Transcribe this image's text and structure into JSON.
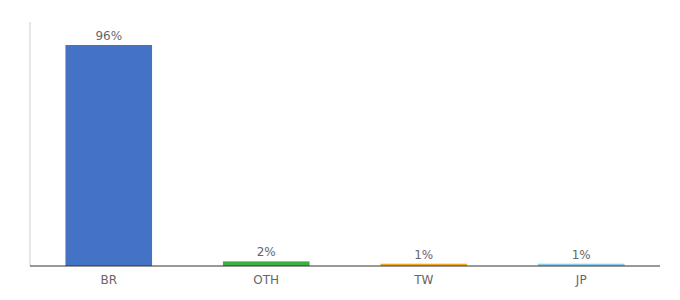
{
  "chart_data": {
    "type": "bar",
    "categories": [
      "BR",
      "OTH",
      "TW",
      "JP"
    ],
    "values": [
      96,
      2,
      1,
      1
    ],
    "value_labels": [
      "96%",
      "2%",
      "1%",
      "1%"
    ],
    "colors": [
      "#4472c4",
      "#3cb043",
      "#f5a623",
      "#87ceeb"
    ],
    "ylim": [
      0,
      106
    ],
    "data_labels": true,
    "tick_labels": "x",
    "grid": false
  }
}
